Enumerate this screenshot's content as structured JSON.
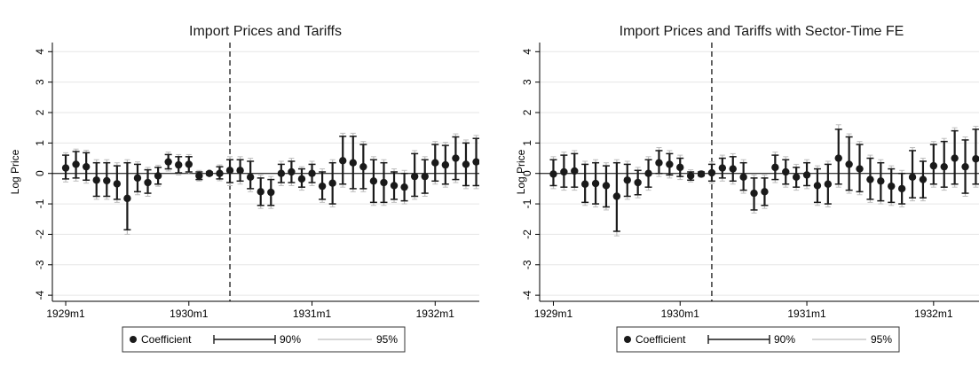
{
  "legend": {
    "coefficient_label": "Coefficient",
    "ci90_label": "90%",
    "ci95_label": "95%"
  },
  "colors": {
    "point": "#1a1a1a",
    "ci90": "#1a1a1a",
    "ci95": "#bdbdbd",
    "axis": "#000000",
    "grid": "#e6e6e6",
    "vline": "#000000"
  },
  "chart_data": [
    {
      "type": "scatter",
      "title": "Import Prices and Tariffs",
      "ylabel": "Log Price",
      "xlabel": "",
      "ylim": [
        -4.2,
        4.3
      ],
      "xlim": [
        "1928m12",
        "1932m5"
      ],
      "yticks": [
        -4,
        -3,
        -2,
        -1,
        0,
        1,
        2,
        3,
        4
      ],
      "xticks": [
        "1929m1",
        "1930m1",
        "1931m1",
        "1932m1"
      ],
      "grid": true,
      "reference_line_y": 0,
      "vertical_line_x": "1930m5",
      "legend_position": "bottom",
      "points": [
        {
          "x": "1929m1",
          "coef": 0.18,
          "lo90": -0.18,
          "hi90": 0.6,
          "lo95": -0.28,
          "hi95": 0.68
        },
        {
          "x": "1929m2",
          "coef": 0.3,
          "lo90": -0.15,
          "hi90": 0.72,
          "lo95": -0.25,
          "hi95": 0.8
        },
        {
          "x": "1929m3",
          "coef": 0.22,
          "lo90": -0.22,
          "hi90": 0.68,
          "lo95": -0.32,
          "hi95": 0.76
        },
        {
          "x": "1929m4",
          "coef": -0.22,
          "lo90": -0.75,
          "hi90": 0.35,
          "lo95": -0.85,
          "hi95": 0.45
        },
        {
          "x": "1929m5",
          "coef": -0.24,
          "lo90": -0.75,
          "hi90": 0.35,
          "lo95": -0.85,
          "hi95": 0.45
        },
        {
          "x": "1929m6",
          "coef": -0.34,
          "lo90": -0.85,
          "hi90": 0.25,
          "lo95": -0.95,
          "hi95": 0.35
        },
        {
          "x": "1929m7",
          "coef": -0.82,
          "lo90": -1.85,
          "hi90": 0.35,
          "lo95": -2.0,
          "hi95": 0.45
        },
        {
          "x": "1929m8",
          "coef": -0.15,
          "lo90": -0.6,
          "hi90": 0.3,
          "lo95": -0.7,
          "hi95": 0.38
        },
        {
          "x": "1929m9",
          "coef": -0.3,
          "lo90": -0.65,
          "hi90": 0.12,
          "lo95": -0.75,
          "hi95": 0.2
        },
        {
          "x": "1929m10",
          "coef": -0.08,
          "lo90": -0.35,
          "hi90": 0.2,
          "lo95": -0.42,
          "hi95": 0.27
        },
        {
          "x": "1929m11",
          "coef": 0.38,
          "lo90": 0.15,
          "hi90": 0.62,
          "lo95": 0.08,
          "hi95": 0.7
        },
        {
          "x": "1929m12",
          "coef": 0.28,
          "lo90": 0.02,
          "hi90": 0.55,
          "lo95": -0.05,
          "hi95": 0.62
        },
        {
          "x": "1930m1",
          "coef": 0.3,
          "lo90": 0.05,
          "hi90": 0.55,
          "lo95": -0.02,
          "hi95": 0.62
        },
        {
          "x": "1930m2",
          "coef": -0.08,
          "lo90": -0.2,
          "hi90": 0.05,
          "lo95": -0.25,
          "hi95": 0.1
        },
        {
          "x": "1930m3",
          "coef": 0.0,
          "lo90": -0.05,
          "hi90": 0.05,
          "lo95": -0.08,
          "hi95": 0.08
        },
        {
          "x": "1930m4",
          "coef": 0.0,
          "lo90": -0.18,
          "hi90": 0.22,
          "lo95": -0.24,
          "hi95": 0.28
        },
        {
          "x": "1930m5",
          "coef": 0.1,
          "lo90": -0.3,
          "hi90": 0.45,
          "lo95": -0.4,
          "hi95": 0.55
        },
        {
          "x": "1930m6",
          "coef": 0.1,
          "lo90": -0.25,
          "hi90": 0.45,
          "lo95": -0.35,
          "hi95": 0.55
        },
        {
          "x": "1930m7",
          "coef": -0.12,
          "lo90": -0.5,
          "hi90": 0.4,
          "lo95": -0.6,
          "hi95": 0.5
        },
        {
          "x": "1930m8",
          "coef": -0.6,
          "lo90": -1.05,
          "hi90": -0.15,
          "lo95": -1.15,
          "hi95": -0.05
        },
        {
          "x": "1930m9",
          "coef": -0.62,
          "lo90": -1.05,
          "hi90": -0.2,
          "lo95": -1.15,
          "hi95": -0.1
        },
        {
          "x": "1930m10",
          "coef": 0.0,
          "lo90": -0.3,
          "hi90": 0.3,
          "lo95": -0.4,
          "hi95": 0.4
        },
        {
          "x": "1930m11",
          "coef": 0.05,
          "lo90": -0.3,
          "hi90": 0.4,
          "lo95": -0.4,
          "hi95": 0.5
        },
        {
          "x": "1930m12",
          "coef": -0.18,
          "lo90": -0.45,
          "hi90": 0.15,
          "lo95": -0.55,
          "hi95": 0.22
        },
        {
          "x": "1931m1",
          "coef": 0.0,
          "lo90": -0.3,
          "hi90": 0.3,
          "lo95": -0.4,
          "hi95": 0.4
        },
        {
          "x": "1931m2",
          "coef": -0.42,
          "lo90": -0.85,
          "hi90": 0.05,
          "lo95": -0.95,
          "hi95": 0.15
        },
        {
          "x": "1931m3",
          "coef": -0.32,
          "lo90": -1.0,
          "hi90": 0.35,
          "lo95": -1.1,
          "hi95": 0.45
        },
        {
          "x": "1931m4",
          "coef": 0.42,
          "lo90": -0.35,
          "hi90": 1.22,
          "lo95": -0.45,
          "hi95": 1.32
        },
        {
          "x": "1931m5",
          "coef": 0.35,
          "lo90": -0.5,
          "hi90": 1.22,
          "lo95": -0.6,
          "hi95": 1.32
        },
        {
          "x": "1931m6",
          "coef": 0.22,
          "lo90": -0.5,
          "hi90": 0.95,
          "lo95": -0.6,
          "hi95": 1.05
        },
        {
          "x": "1931m7",
          "coef": -0.25,
          "lo90": -0.95,
          "hi90": 0.45,
          "lo95": -1.05,
          "hi95": 0.55
        },
        {
          "x": "1931m8",
          "coef": -0.3,
          "lo90": -0.95,
          "hi90": 0.35,
          "lo95": -1.05,
          "hi95": 0.45
        },
        {
          "x": "1931m9",
          "coef": -0.4,
          "lo90": -0.85,
          "hi90": 0.05,
          "lo95": -0.95,
          "hi95": 0.15
        },
        {
          "x": "1931m10",
          "coef": -0.45,
          "lo90": -0.9,
          "hi90": 0.0,
          "lo95": -1.0,
          "hi95": 0.1
        },
        {
          "x": "1931m11",
          "coef": -0.1,
          "lo90": -0.75,
          "hi90": 0.65,
          "lo95": -0.85,
          "hi95": 0.75
        },
        {
          "x": "1931m12",
          "coef": -0.1,
          "lo90": -0.65,
          "hi90": 0.45,
          "lo95": -0.75,
          "hi95": 0.55
        },
        {
          "x": "1932m1",
          "coef": 0.35,
          "lo90": -0.25,
          "hi90": 0.95,
          "lo95": -0.35,
          "hi95": 1.05
        },
        {
          "x": "1932m2",
          "coef": 0.28,
          "lo90": -0.35,
          "hi90": 0.92,
          "lo95": -0.45,
          "hi95": 1.02
        },
        {
          "x": "1932m3",
          "coef": 0.5,
          "lo90": -0.2,
          "hi90": 1.2,
          "lo95": -0.3,
          "hi95": 1.3
        },
        {
          "x": "1932m4",
          "coef": 0.3,
          "lo90": -0.4,
          "hi90": 1.0,
          "lo95": -0.5,
          "hi95": 1.1
        },
        {
          "x": "1932m5",
          "coef": 0.38,
          "lo90": -0.4,
          "hi90": 1.15,
          "lo95": -0.5,
          "hi95": 1.25
        },
        {
          "x": "1932m6",
          "coef": 0.8,
          "lo90": -0.05,
          "hi90": 1.7,
          "lo95": -0.15,
          "hi95": 1.8
        }
      ]
    },
    {
      "type": "scatter",
      "title": "Import Prices and Tariffs with Sector-Time FE",
      "ylabel": "Log Price",
      "xlabel": "",
      "ylim": [
        -4.2,
        4.3
      ],
      "xlim": [
        "1928m12",
        "1932m5"
      ],
      "yticks": [
        -4,
        -3,
        -2,
        -1,
        0,
        1,
        2,
        3,
        4
      ],
      "xticks": [
        "1929m1",
        "1930m1",
        "1931m1",
        "1932m1"
      ],
      "grid": true,
      "reference_line_y": 0,
      "vertical_line_x": "1930m4",
      "legend_position": "bottom",
      "points": [
        {
          "x": "1929m1",
          "coef": -0.02,
          "lo90": -0.4,
          "hi90": 0.45,
          "lo95": -0.5,
          "hi95": 0.55
        },
        {
          "x": "1929m2",
          "coef": 0.05,
          "lo90": -0.45,
          "hi90": 0.6,
          "lo95": -0.55,
          "hi95": 0.7
        },
        {
          "x": "1929m3",
          "coef": 0.08,
          "lo90": -0.45,
          "hi90": 0.65,
          "lo95": -0.55,
          "hi95": 0.75
        },
        {
          "x": "1929m4",
          "coef": -0.35,
          "lo90": -0.95,
          "hi90": 0.3,
          "lo95": -1.05,
          "hi95": 0.4
        },
        {
          "x": "1929m5",
          "coef": -0.33,
          "lo90": -1.0,
          "hi90": 0.35,
          "lo95": -1.1,
          "hi95": 0.45
        },
        {
          "x": "1929m6",
          "coef": -0.4,
          "lo90": -1.1,
          "hi90": 0.25,
          "lo95": -1.2,
          "hi95": 0.35
        },
        {
          "x": "1929m7",
          "coef": -0.75,
          "lo90": -1.9,
          "hi90": 0.35,
          "lo95": -2.05,
          "hi95": 0.45
        },
        {
          "x": "1929m8",
          "coef": -0.22,
          "lo90": -0.75,
          "hi90": 0.3,
          "lo95": -0.85,
          "hi95": 0.4
        },
        {
          "x": "1929m9",
          "coef": -0.3,
          "lo90": -0.7,
          "hi90": 0.1,
          "lo95": -0.8,
          "hi95": 0.2
        },
        {
          "x": "1929m10",
          "coef": 0.0,
          "lo90": -0.45,
          "hi90": 0.45,
          "lo95": -0.55,
          "hi95": 0.55
        },
        {
          "x": "1929m11",
          "coef": 0.35,
          "lo90": 0.0,
          "hi90": 0.75,
          "lo95": -0.1,
          "hi95": 0.85
        },
        {
          "x": "1929m12",
          "coef": 0.3,
          "lo90": -0.05,
          "hi90": 0.65,
          "lo95": -0.15,
          "hi95": 0.75
        },
        {
          "x": "1930m1",
          "coef": 0.2,
          "lo90": -0.1,
          "hi90": 0.5,
          "lo95": -0.2,
          "hi95": 0.6
        },
        {
          "x": "1930m2",
          "coef": -0.08,
          "lo90": -0.22,
          "hi90": 0.05,
          "lo95": -0.28,
          "hi95": 0.12
        },
        {
          "x": "1930m3",
          "coef": -0.02,
          "lo90": -0.08,
          "hi90": 0.05,
          "lo95": -0.12,
          "hi95": 0.08
        },
        {
          "x": "1930m4",
          "coef": 0.02,
          "lo90": -0.25,
          "hi90": 0.3,
          "lo95": -0.32,
          "hi95": 0.38
        },
        {
          "x": "1930m5",
          "coef": 0.18,
          "lo90": -0.15,
          "hi90": 0.5,
          "lo95": -0.25,
          "hi95": 0.6
        },
        {
          "x": "1930m6",
          "coef": 0.15,
          "lo90": -0.25,
          "hi90": 0.55,
          "lo95": -0.35,
          "hi95": 0.65
        },
        {
          "x": "1930m7",
          "coef": -0.12,
          "lo90": -0.55,
          "hi90": 0.35,
          "lo95": -0.65,
          "hi95": 0.45
        },
        {
          "x": "1930m8",
          "coef": -0.65,
          "lo90": -1.2,
          "hi90": -0.15,
          "lo95": -1.3,
          "hi95": -0.05
        },
        {
          "x": "1930m9",
          "coef": -0.6,
          "lo90": -1.05,
          "hi90": -0.15,
          "lo95": -1.15,
          "hi95": -0.05
        },
        {
          "x": "1930m10",
          "coef": 0.2,
          "lo90": -0.2,
          "hi90": 0.6,
          "lo95": -0.3,
          "hi95": 0.7
        },
        {
          "x": "1930m11",
          "coef": 0.05,
          "lo90": -0.35,
          "hi90": 0.45,
          "lo95": -0.45,
          "hi95": 0.55
        },
        {
          "x": "1930m12",
          "coef": -0.12,
          "lo90": -0.45,
          "hi90": 0.2,
          "lo95": -0.55,
          "hi95": 0.3
        },
        {
          "x": "1931m1",
          "coef": -0.05,
          "lo90": -0.4,
          "hi90": 0.35,
          "lo95": -0.5,
          "hi95": 0.45
        },
        {
          "x": "1931m2",
          "coef": -0.4,
          "lo90": -0.95,
          "hi90": 0.15,
          "lo95": -1.05,
          "hi95": 0.25
        },
        {
          "x": "1931m3",
          "coef": -0.35,
          "lo90": -1.0,
          "hi90": 0.3,
          "lo95": -1.1,
          "hi95": 0.4
        },
        {
          "x": "1931m4",
          "coef": 0.5,
          "lo90": -0.35,
          "hi90": 1.45,
          "lo95": -0.45,
          "hi95": 1.6
        },
        {
          "x": "1931m5",
          "coef": 0.3,
          "lo90": -0.55,
          "hi90": 1.2,
          "lo95": -0.65,
          "hi95": 1.3
        },
        {
          "x": "1931m6",
          "coef": 0.15,
          "lo90": -0.6,
          "hi90": 0.95,
          "lo95": -0.7,
          "hi95": 1.05
        },
        {
          "x": "1931m7",
          "coef": -0.2,
          "lo90": -0.85,
          "hi90": 0.5,
          "lo95": -0.95,
          "hi95": 0.6
        },
        {
          "x": "1931m8",
          "coef": -0.25,
          "lo90": -0.9,
          "hi90": 0.35,
          "lo95": -1.0,
          "hi95": 0.45
        },
        {
          "x": "1931m9",
          "coef": -0.42,
          "lo90": -0.95,
          "hi90": 0.15,
          "lo95": -1.05,
          "hi95": 0.25
        },
        {
          "x": "1931m10",
          "coef": -0.5,
          "lo90": -1.0,
          "hi90": 0.0,
          "lo95": -1.1,
          "hi95": 0.1
        },
        {
          "x": "1931m11",
          "coef": -0.12,
          "lo90": -0.8,
          "hi90": 0.75,
          "lo95": -0.9,
          "hi95": 0.85
        },
        {
          "x": "1931m12",
          "coef": -0.2,
          "lo90": -0.8,
          "hi90": 0.4,
          "lo95": -0.9,
          "hi95": 0.5
        },
        {
          "x": "1932m1",
          "coef": 0.25,
          "lo90": -0.35,
          "hi90": 0.95,
          "lo95": -0.45,
          "hi95": 1.05
        },
        {
          "x": "1932m2",
          "coef": 0.22,
          "lo90": -0.45,
          "hi90": 1.05,
          "lo95": -0.55,
          "hi95": 1.15
        },
        {
          "x": "1932m3",
          "coef": 0.5,
          "lo90": -0.35,
          "hi90": 1.4,
          "lo95": -0.45,
          "hi95": 1.5
        },
        {
          "x": "1932m4",
          "coef": 0.22,
          "lo90": -0.65,
          "hi90": 1.1,
          "lo95": -0.75,
          "hi95": 1.2
        },
        {
          "x": "1932m5",
          "coef": 0.48,
          "lo90": -0.35,
          "hi90": 1.45,
          "lo95": -0.45,
          "hi95": 1.55
        },
        {
          "x": "1932m6",
          "coef": 0.9,
          "lo90": -0.2,
          "hi90": 1.9,
          "lo95": -0.3,
          "hi95": 2.05
        }
      ]
    }
  ]
}
